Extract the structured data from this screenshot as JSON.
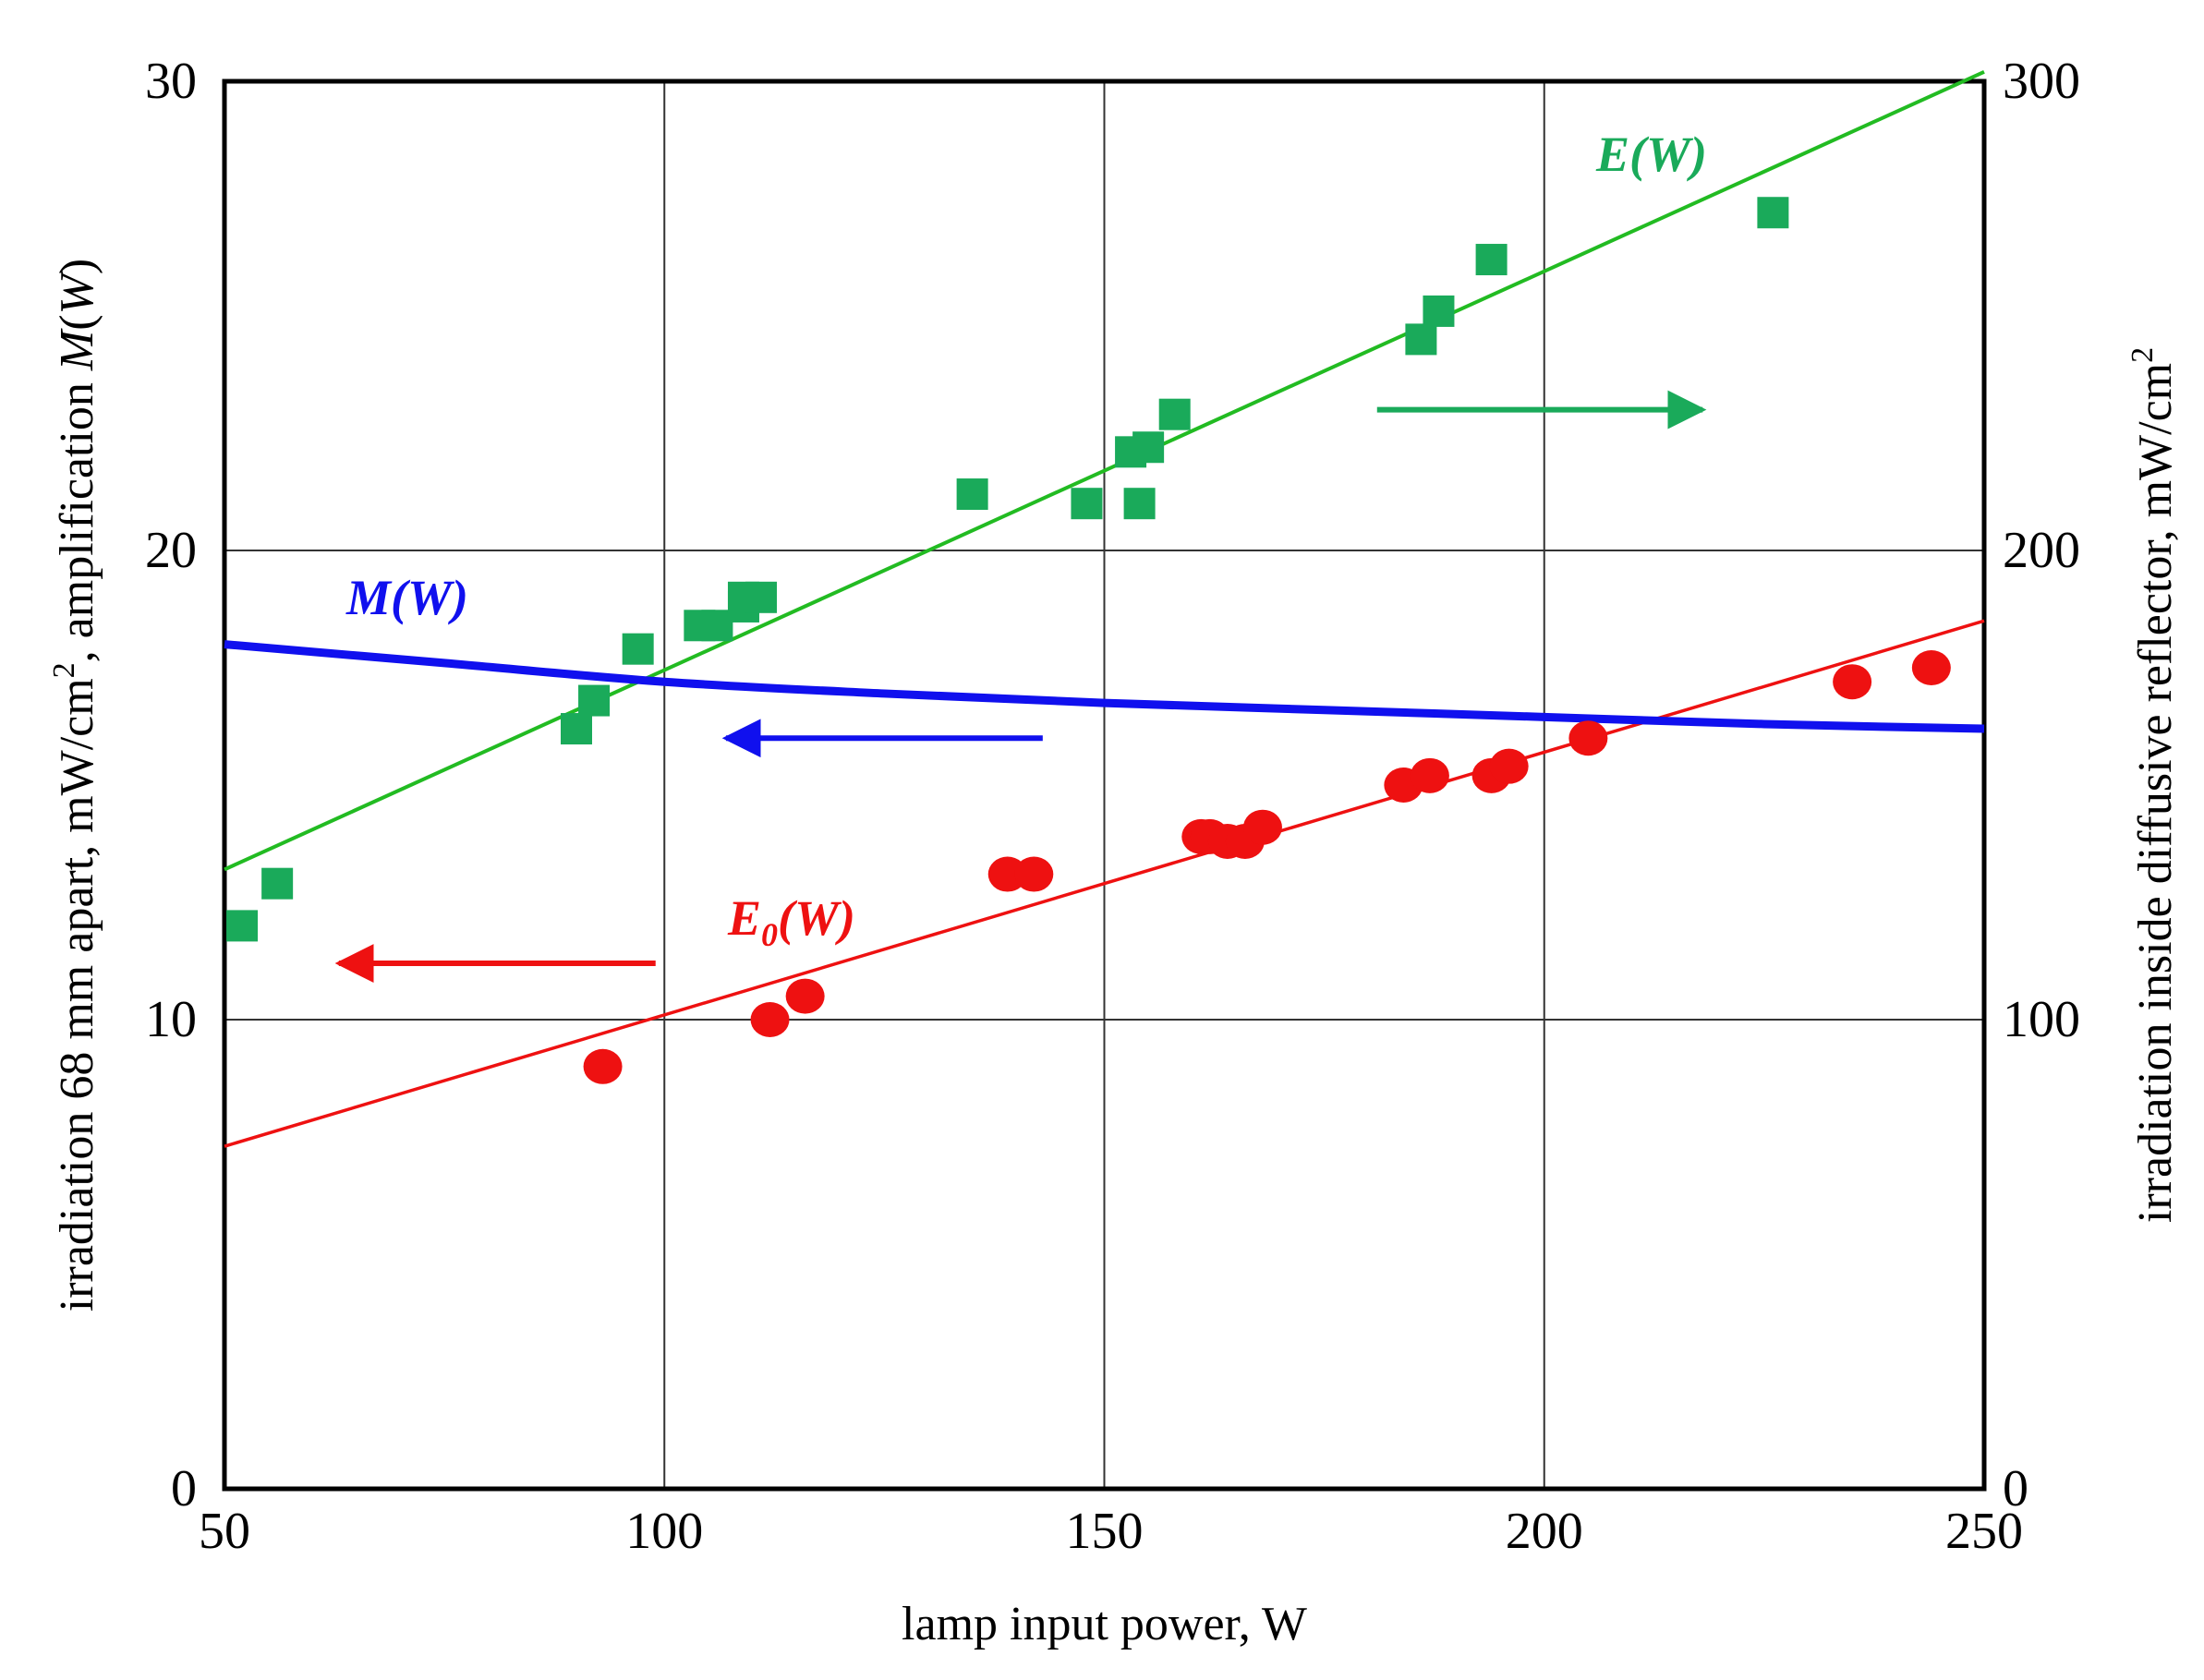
{
  "chart_data": {
    "type": "scatter",
    "title": "",
    "xlabel": "lamp input power, W",
    "ylabel_left": {
      "text": "irradiation 68 mm apart, mW/cm",
      "sup": "2",
      "suffix": ", amplification ",
      "italic": "M",
      "italic_paren_open": "(",
      "italic_var": "W",
      "italic_paren_close": ")"
    },
    "ylabel_right": {
      "text": "irradiation inside diffusive reflector, mW/cm",
      "sup": "2"
    },
    "xlim": [
      50,
      250
    ],
    "ylim_left": [
      0,
      30
    ],
    "ylim_right": [
      0,
      300
    ],
    "xticks": [
      "50",
      "100",
      "150",
      "200",
      "250"
    ],
    "yticks_left": [
      "0",
      "10",
      "20",
      "30"
    ],
    "yticks_right": [
      "0",
      "100",
      "200",
      "300"
    ],
    "grid": true,
    "colors": {
      "E": "#1aaa5a",
      "E_fit": "#22bb22",
      "M": "#1010ee",
      "E0": "#ee1111"
    },
    "series": [
      {
        "name": "E(W)",
        "label_main": "E",
        "label_arg": "(W)",
        "axis": "right",
        "marker": "square",
        "points": [
          [
            52,
            120
          ],
          [
            56,
            129
          ],
          [
            90,
            162
          ],
          [
            92,
            168
          ],
          [
            97,
            179
          ],
          [
            104,
            184
          ],
          [
            106,
            184
          ],
          [
            109,
            188
          ],
          [
            109,
            190
          ],
          [
            111,
            190
          ],
          [
            135,
            212
          ],
          [
            148,
            210
          ],
          [
            153,
            221
          ],
          [
            154,
            210
          ],
          [
            155,
            222
          ],
          [
            158,
            229
          ],
          [
            186,
            245
          ],
          [
            188,
            251
          ],
          [
            194,
            262
          ],
          [
            226,
            272
          ]
        ]
      },
      {
        "name": "E(W) fit",
        "axis": "right",
        "kind": "line",
        "x": [
          50,
          250
        ],
        "y": [
          132,
          302
        ]
      },
      {
        "name": "M(W)",
        "label_main": "M",
        "label_arg": "(W)",
        "axis": "left",
        "kind": "curve",
        "x": [
          50,
          75,
          100,
          125,
          150,
          175,
          200,
          225,
          250
        ],
        "y": [
          18.0,
          17.6,
          17.2,
          16.95,
          16.75,
          16.6,
          16.45,
          16.3,
          16.2
        ]
      },
      {
        "name": "E0(W)",
        "label_main": "E",
        "label_sub": "0",
        "label_arg": "(W)",
        "axis": "left",
        "marker": "circle",
        "points": [
          [
            93,
            9.0
          ],
          [
            112,
            10.0
          ],
          [
            116,
            10.5
          ],
          [
            139,
            13.1
          ],
          [
            142,
            13.1
          ],
          [
            161,
            13.9
          ],
          [
            162,
            13.9
          ],
          [
            164,
            13.8
          ],
          [
            166,
            13.8
          ],
          [
            168,
            14.1
          ],
          [
            184,
            15.0
          ],
          [
            187,
            15.2
          ],
          [
            194,
            15.2
          ],
          [
            196,
            15.4
          ],
          [
            205,
            16.0
          ],
          [
            235,
            17.2
          ],
          [
            244,
            17.5
          ]
        ]
      },
      {
        "name": "E0(W) fit",
        "axis": "left",
        "kind": "line",
        "x": [
          50,
          250
        ],
        "y": [
          7.3,
          18.5
        ]
      }
    ],
    "annotations": [
      {
        "type": "arrow",
        "direction": "right",
        "color_key": "E",
        "meaning": "E(W) read on right axis",
        "from": [
          181,
          23
        ],
        "to": [
          218,
          23
        ]
      },
      {
        "type": "arrow",
        "direction": "left",
        "color_key": "M",
        "meaning": "M(W) read on left axis",
        "from": [
          143,
          16.0
        ],
        "to": [
          107,
          16.0
        ]
      },
      {
        "type": "arrow",
        "direction": "left",
        "color_key": "E0",
        "meaning": "E0(W) read on left axis",
        "from": [
          99,
          11.2
        ],
        "to": [
          63,
          11.2
        ]
      }
    ]
  }
}
